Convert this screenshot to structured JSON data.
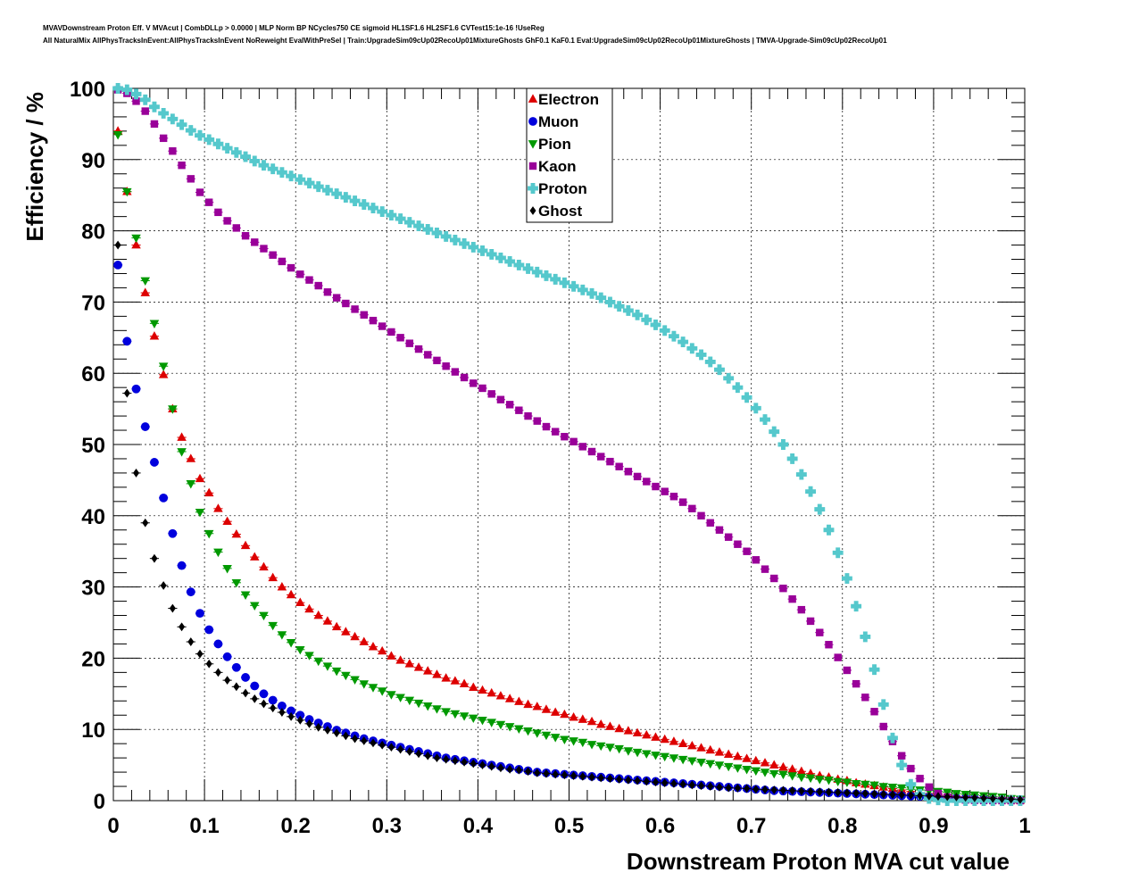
{
  "title_lines": [
    "MVAVDownstream Proton Eff. V MVAcut | CombDLLp > 0.0000 | MLP Norm BP NCycles750 CE sigmoid HL1SF1.6 HL2SF1.6 CVTest15:1e-16 !UseReg",
    "All NaturalMix AllPhysTracksInEvent:AllPhysTracksInEvent NoReweight EvalWithPreSel | Train:UpgradeSim09cUp02RecoUp01MixtureGhosts GhF0.1 KaF0.1 Eval:UpgradeSim09cUp02RecoUp01MixtureGhosts | TMVA-Upgrade-Sim09cUp02RecoUp01"
  ],
  "chart_data": {
    "type": "scatter",
    "xlabel": "Downstream Proton MVA cut value",
    "ylabel": "Efficiency / %",
    "xlim": [
      0,
      1
    ],
    "ylim": [
      0,
      100
    ],
    "xticks": [
      "0",
      "0.1",
      "0.2",
      "0.3",
      "0.4",
      "0.5",
      "0.6",
      "0.7",
      "0.8",
      "0.9",
      "1"
    ],
    "yticks": [
      "0",
      "10",
      "20",
      "30",
      "40",
      "50",
      "60",
      "70",
      "80",
      "90",
      "100"
    ],
    "grid": true,
    "legend_position": "top-center",
    "x": [
      0.005,
      0.015,
      0.025,
      0.035,
      0.045,
      0.055,
      0.065,
      0.075,
      0.085,
      0.095,
      0.105,
      0.115,
      0.125,
      0.135,
      0.145,
      0.155,
      0.165,
      0.175,
      0.185,
      0.195,
      0.205,
      0.215,
      0.225,
      0.235,
      0.245,
      0.255,
      0.265,
      0.275,
      0.285,
      0.295,
      0.305,
      0.315,
      0.325,
      0.335,
      0.345,
      0.355,
      0.365,
      0.375,
      0.385,
      0.395,
      0.405,
      0.415,
      0.425,
      0.435,
      0.445,
      0.455,
      0.465,
      0.475,
      0.485,
      0.495,
      0.505,
      0.515,
      0.525,
      0.535,
      0.545,
      0.555,
      0.565,
      0.575,
      0.585,
      0.595,
      0.605,
      0.615,
      0.625,
      0.635,
      0.645,
      0.655,
      0.665,
      0.675,
      0.685,
      0.695,
      0.705,
      0.715,
      0.725,
      0.735,
      0.745,
      0.755,
      0.765,
      0.775,
      0.785,
      0.795,
      0.805,
      0.815,
      0.825,
      0.835,
      0.845,
      0.855,
      0.865,
      0.875,
      0.885,
      0.895,
      0.905,
      0.915,
      0.925,
      0.935,
      0.945,
      0.955,
      0.965,
      0.975,
      0.985,
      0.995
    ],
    "series": [
      {
        "name": "Electron",
        "marker": "triangle-up",
        "color": "#dd0000",
        "values": [
          94.0,
          85.5,
          78.0,
          71.3,
          65.2,
          59.8,
          55.0,
          51.0,
          48.0,
          45.2,
          43.2,
          41.0,
          39.2,
          37.4,
          35.8,
          34.2,
          32.8,
          31.3,
          30.0,
          28.9,
          27.8,
          26.9,
          26.0,
          25.2,
          24.4,
          23.7,
          23.0,
          22.3,
          21.6,
          21.0,
          20.3,
          19.7,
          19.2,
          18.7,
          18.2,
          17.7,
          17.2,
          16.8,
          16.4,
          15.9,
          15.5,
          15.1,
          14.7,
          14.3,
          13.9,
          13.5,
          13.2,
          12.8,
          12.4,
          12.1,
          11.7,
          11.4,
          11.1,
          10.7,
          10.4,
          10.1,
          9.8,
          9.5,
          9.2,
          8.9,
          8.6,
          8.3,
          8.0,
          7.7,
          7.4,
          7.1,
          6.8,
          6.5,
          6.2,
          5.9,
          5.6,
          5.3,
          5.0,
          4.7,
          4.4,
          4.1,
          3.8,
          3.5,
          3.3,
          3.0,
          2.8,
          2.5,
          2.3,
          2.1,
          1.9,
          1.7,
          1.5,
          1.3,
          1.1,
          1.0,
          0.8,
          0.7,
          0.6,
          0.5,
          0.4,
          0.3,
          0.2,
          0.15,
          0.1,
          0.05
        ]
      },
      {
        "name": "Muon",
        "marker": "circle",
        "color": "#0000dd",
        "values": [
          75.2,
          64.5,
          57.8,
          52.5,
          47.5,
          42.5,
          37.5,
          33.0,
          29.3,
          26.3,
          24.0,
          22.0,
          20.2,
          18.7,
          17.3,
          16.1,
          15.0,
          14.1,
          13.3,
          12.6,
          12.0,
          11.4,
          10.9,
          10.4,
          9.9,
          9.5,
          9.1,
          8.7,
          8.4,
          8.1,
          7.8,
          7.5,
          7.2,
          6.9,
          6.6,
          6.3,
          6.0,
          5.8,
          5.6,
          5.4,
          5.2,
          5.0,
          4.8,
          4.6,
          4.4,
          4.2,
          4.0,
          3.9,
          3.8,
          3.7,
          3.6,
          3.5,
          3.4,
          3.3,
          3.2,
          3.1,
          3.0,
          2.9,
          2.8,
          2.7,
          2.6,
          2.5,
          2.4,
          2.3,
          2.2,
          2.1,
          2.0,
          1.9,
          1.8,
          1.7,
          1.6,
          1.5,
          1.4,
          1.35,
          1.3,
          1.25,
          1.2,
          1.15,
          1.1,
          1.05,
          1.0,
          0.95,
          0.9,
          0.85,
          0.8,
          0.75,
          0.7,
          0.65,
          0.6,
          0.55,
          0.5,
          0.45,
          0.4,
          0.35,
          0.3,
          0.25,
          0.2,
          0.15,
          0.1,
          0.05
        ]
      },
      {
        "name": "Pion",
        "marker": "triangle-down",
        "color": "#009900",
        "values": [
          93.5,
          85.5,
          79.0,
          73.0,
          67.0,
          61.0,
          55.0,
          49.0,
          44.5,
          40.5,
          37.5,
          34.9,
          32.6,
          30.6,
          28.9,
          27.4,
          26.0,
          24.6,
          23.3,
          22.2,
          21.2,
          20.4,
          19.6,
          18.9,
          18.2,
          17.6,
          17.0,
          16.4,
          15.9,
          15.4,
          14.9,
          14.5,
          14.1,
          13.7,
          13.3,
          12.9,
          12.5,
          12.2,
          11.9,
          11.6,
          11.3,
          11.0,
          10.7,
          10.4,
          10.1,
          9.8,
          9.5,
          9.2,
          8.9,
          8.6,
          8.4,
          8.2,
          7.9,
          7.7,
          7.5,
          7.3,
          7.0,
          6.8,
          6.6,
          6.4,
          6.2,
          6.0,
          5.8,
          5.6,
          5.4,
          5.2,
          5.0,
          4.8,
          4.6,
          4.4,
          4.2,
          4.0,
          3.8,
          3.7,
          3.5,
          3.3,
          3.2,
          3.0,
          2.9,
          2.7,
          2.6,
          2.4,
          2.3,
          2.2,
          2.0,
          1.9,
          1.8,
          1.6,
          1.5,
          1.4,
          1.3,
          1.2,
          1.0,
          0.9,
          0.8,
          0.7,
          0.6,
          0.5,
          0.3,
          0.2
        ]
      },
      {
        "name": "Kaon",
        "marker": "square",
        "color": "#990099",
        "values": [
          99.8,
          99.3,
          98.2,
          96.8,
          95.0,
          93.0,
          91.2,
          89.2,
          87.3,
          85.4,
          84.0,
          82.6,
          81.4,
          80.4,
          79.3,
          78.4,
          77.5,
          76.6,
          75.7,
          74.8,
          73.9,
          73.1,
          72.3,
          71.4,
          70.6,
          69.8,
          69.0,
          68.2,
          67.4,
          66.6,
          65.8,
          65.0,
          64.2,
          63.4,
          62.6,
          61.8,
          61.0,
          60.2,
          59.4,
          58.6,
          57.9,
          57.1,
          56.3,
          55.6,
          54.8,
          54.0,
          53.3,
          52.5,
          51.8,
          51.1,
          50.4,
          49.7,
          49.0,
          48.3,
          47.6,
          46.9,
          46.2,
          45.5,
          44.8,
          44.1,
          43.4,
          42.7,
          41.9,
          41.0,
          40.0,
          39.0,
          38.0,
          37.0,
          36.0,
          35.0,
          33.8,
          32.5,
          31.2,
          29.8,
          28.3,
          26.8,
          25.2,
          23.6,
          21.9,
          20.1,
          18.3,
          16.4,
          14.5,
          12.5,
          10.4,
          8.3,
          6.3,
          4.5,
          3.1,
          1.9,
          1.0,
          0.5,
          0.2,
          0.1,
          0.05,
          0.02,
          0.01,
          0.01,
          0.0,
          0.0
        ]
      },
      {
        "name": "Proton",
        "marker": "cross",
        "color": "#55c8cc",
        "values": [
          100.0,
          99.8,
          99.2,
          98.4,
          97.4,
          96.5,
          95.7,
          94.9,
          94.1,
          93.4,
          92.8,
          92.2,
          91.6,
          91.0,
          90.4,
          89.8,
          89.2,
          88.7,
          88.2,
          87.7,
          87.2,
          86.7,
          86.2,
          85.7,
          85.2,
          84.7,
          84.2,
          83.7,
          83.2,
          82.7,
          82.2,
          81.7,
          81.2,
          80.7,
          80.2,
          79.7,
          79.2,
          78.7,
          78.2,
          77.7,
          77.2,
          76.7,
          76.2,
          75.7,
          75.2,
          74.7,
          74.2,
          73.7,
          73.2,
          72.7,
          72.2,
          71.7,
          71.2,
          70.6,
          70.0,
          69.4,
          68.8,
          68.2,
          67.5,
          66.8,
          66.0,
          65.2,
          64.4,
          63.5,
          62.6,
          61.6,
          60.5,
          59.3,
          58.0,
          56.6,
          55.1,
          53.5,
          51.8,
          50.0,
          48.0,
          45.8,
          43.4,
          40.9,
          38.0,
          34.8,
          31.2,
          27.3,
          23.0,
          18.4,
          13.5,
          8.8,
          5.0,
          2.3,
          0.9,
          0.3,
          0.1,
          0.0,
          0.0,
          0.0,
          0.0,
          0.0,
          0.0,
          0.0,
          0.0,
          0.0
        ]
      },
      {
        "name": "Ghost",
        "marker": "diamond",
        "color": "#000000",
        "values": [
          78.0,
          57.2,
          46.0,
          39.0,
          34.0,
          30.2,
          27.0,
          24.4,
          22.3,
          20.6,
          19.2,
          18.0,
          16.9,
          16.0,
          15.1,
          14.3,
          13.6,
          13.0,
          12.4,
          11.8,
          11.3,
          10.8,
          10.3,
          9.9,
          9.5,
          9.1,
          8.7,
          8.4,
          8.1,
          7.8,
          7.5,
          7.2,
          6.9,
          6.6,
          6.3,
          6.0,
          5.8,
          5.6,
          5.4,
          5.2,
          5.0,
          4.8,
          4.6,
          4.4,
          4.3,
          4.1,
          3.9,
          3.8,
          3.7,
          3.6,
          3.5,
          3.4,
          3.3,
          3.2,
          3.1,
          3.0,
          2.9,
          2.8,
          2.7,
          2.6,
          2.5,
          2.4,
          2.3,
          2.2,
          2.1,
          2.0,
          1.9,
          1.8,
          1.75,
          1.7,
          1.6,
          1.55,
          1.5,
          1.45,
          1.4,
          1.35,
          1.3,
          1.25,
          1.2,
          1.15,
          1.1,
          1.05,
          1.0,
          0.95,
          0.9,
          0.85,
          0.8,
          0.75,
          0.7,
          0.65,
          0.6,
          0.55,
          0.5,
          0.45,
          0.4,
          0.35,
          0.3,
          0.25,
          0.2,
          0.15
        ]
      }
    ]
  }
}
